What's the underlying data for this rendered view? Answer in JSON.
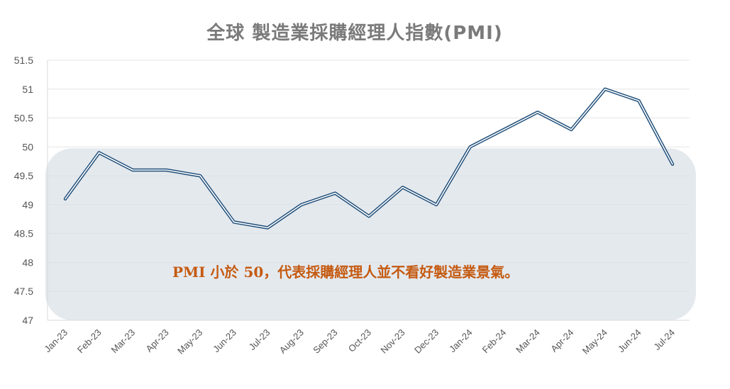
{
  "chart_data": {
    "type": "line",
    "title": "全球 製造業採購經理人指數(PMI)",
    "xlabel": "",
    "ylabel": "",
    "categories": [
      "Jan-23",
      "Feb-23",
      "Mar-23",
      "Apr-23",
      "May-23",
      "Jun-23",
      "Jul-23",
      "Aug-23",
      "Sep-23",
      "Oct-23",
      "Nov-23",
      "Dec-23",
      "Jan-24",
      "Feb-24",
      "Mar-24",
      "Apr-24",
      "May-24",
      "Jun-24",
      "Jul-24"
    ],
    "series": [
      {
        "values": [
          49.1,
          49.9,
          49.6,
          49.6,
          49.5,
          48.7,
          48.6,
          49.0,
          49.2,
          48.8,
          49.3,
          49.0,
          50.0,
          50.3,
          50.6,
          50.3,
          51.0,
          50.8,
          49.7
        ]
      }
    ],
    "ylim": [
      47,
      51.5
    ],
    "yticks": [
      "47",
      "47.5",
      "48",
      "48.5",
      "49",
      "49.5",
      "50",
      "50.5",
      "51",
      "51.5"
    ],
    "grid": true,
    "highlight_region": {
      "y_max": 50
    },
    "annotation": "PMI 小於 50，代表採購經理人並不看好製造業景氣。",
    "colors": {
      "line": "#1f4e79",
      "highlight": "#d6dde5",
      "annotation": "#c55a11",
      "title": "#7a7a7a"
    }
  }
}
